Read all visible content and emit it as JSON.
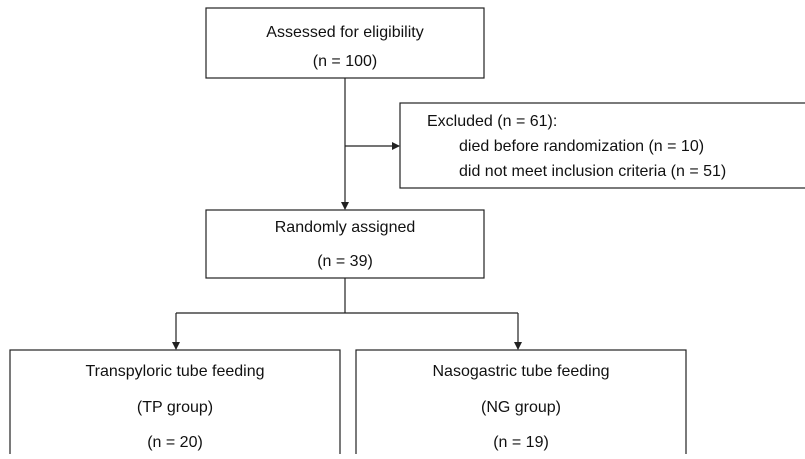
{
  "nodes": [
    {
      "lines": [
        "Assessed for eligibility",
        "(n = 100)"
      ]
    },
    {
      "lines": [
        "Excluded (n = 61):",
        "died before randomization (n = 10)",
        "did not meet inclusion criteria (n = 51)"
      ]
    },
    {
      "lines": [
        "Randomly assigned",
        "(n = 39)"
      ]
    },
    {
      "lines": [
        "Transpyloric tube feeding",
        "(TP group)",
        "(n = 20)"
      ]
    },
    {
      "lines": [
        "Nasogastric tube feeding",
        "(NG group)",
        "(n = 19)"
      ]
    }
  ]
}
